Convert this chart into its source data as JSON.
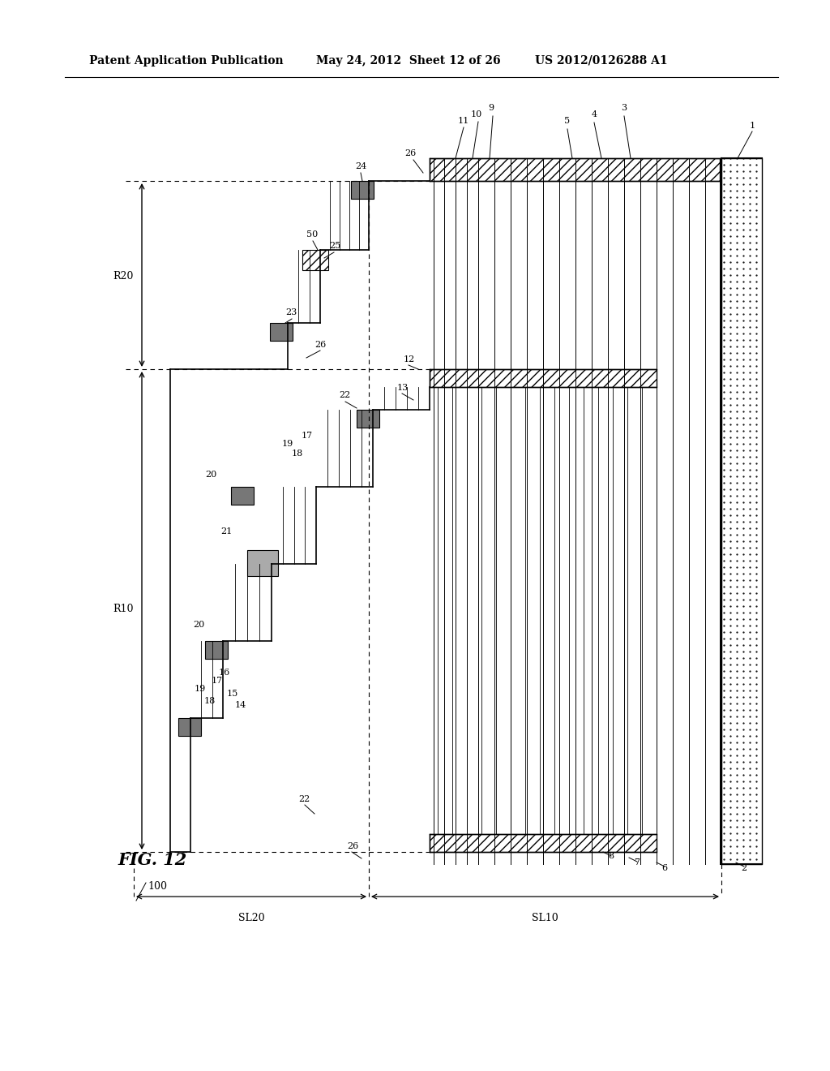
{
  "title_left": "Patent Application Publication",
  "title_mid": "May 24, 2012  Sheet 12 of 26",
  "title_right": "US 2012/0126288 A1",
  "fig_label": "FIG. 12",
  "device_label": "100",
  "background": "#ffffff",
  "foreground": "#000000"
}
